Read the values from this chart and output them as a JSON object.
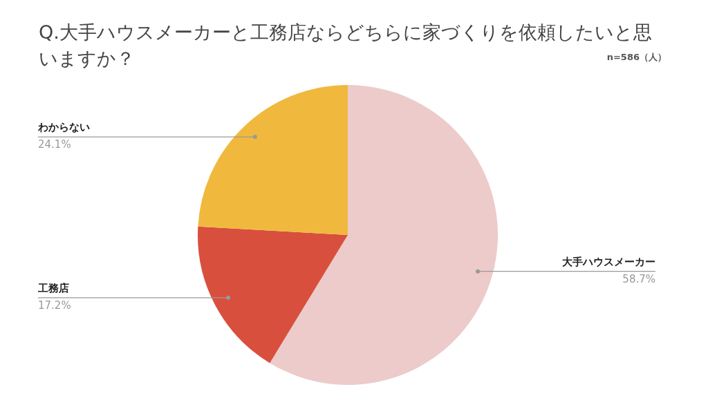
{
  "chart_data": {
    "type": "pie",
    "title": "Q.大手ハウスメーカーと工務店ならどちらに家づくりを依頼したいと思いますか？",
    "categories": [
      "大手ハウスメーカー",
      "工務店",
      "わからない"
    ],
    "values": [
      58.7,
      17.2,
      24.1
    ],
    "colors": [
      "#eccbca",
      "#d94f3d",
      "#f0b93e"
    ],
    "value_labels": [
      "58.7%",
      "17.2%",
      "24.1%"
    ],
    "annotations": [
      "n=586（人）"
    ],
    "legend": false
  }
}
